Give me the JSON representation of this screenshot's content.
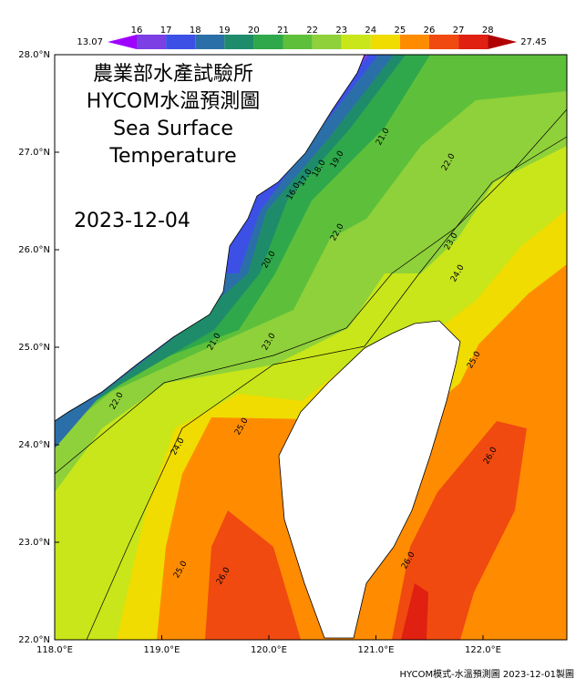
{
  "colorbar": {
    "min_label": "13.07",
    "max_label": "27.45",
    "ticks": [
      "16",
      "17",
      "18",
      "19",
      "20",
      "21",
      "22",
      "23",
      "24",
      "25",
      "26",
      "27",
      "28"
    ],
    "colors": [
      "#a000ff",
      "#7b3fe4",
      "#3c50e6",
      "#2b6fa8",
      "#1e8c6a",
      "#2ea84a",
      "#5ec03a",
      "#8fd13a",
      "#c8e619",
      "#f0dc00",
      "#ff8c00",
      "#f04a10",
      "#e02010",
      "#b00000"
    ]
  },
  "title": {
    "lines": [
      "農業部水產試驗所",
      "HYCOM水溫預測圖",
      "Sea Surface",
      "Temperature"
    ]
  },
  "date": "2023-12-04",
  "axes": {
    "lat": [
      "28.0°N",
      "27.0°N",
      "26.0°N",
      "25.0°N",
      "24.0°N",
      "23.0°N",
      "22.0°N"
    ],
    "lon": [
      "118.0°E",
      "119.0°E",
      "120.0°E",
      "121.0°E",
      "122.0°E"
    ]
  },
  "contour_labels": [
    "21.0",
    "19.0",
    "18.0",
    "17.0",
    "16.0",
    "22.0",
    "22.0",
    "20.0",
    "21.0",
    "23.0",
    "22.0",
    "23.0",
    "24.0",
    "24.0",
    "25.0",
    "25.0",
    "25.0",
    "26.0",
    "26.0",
    "26.0"
  ],
  "footer": "HYCOM模式-水溫預測圖 2023-12-01製圖"
}
